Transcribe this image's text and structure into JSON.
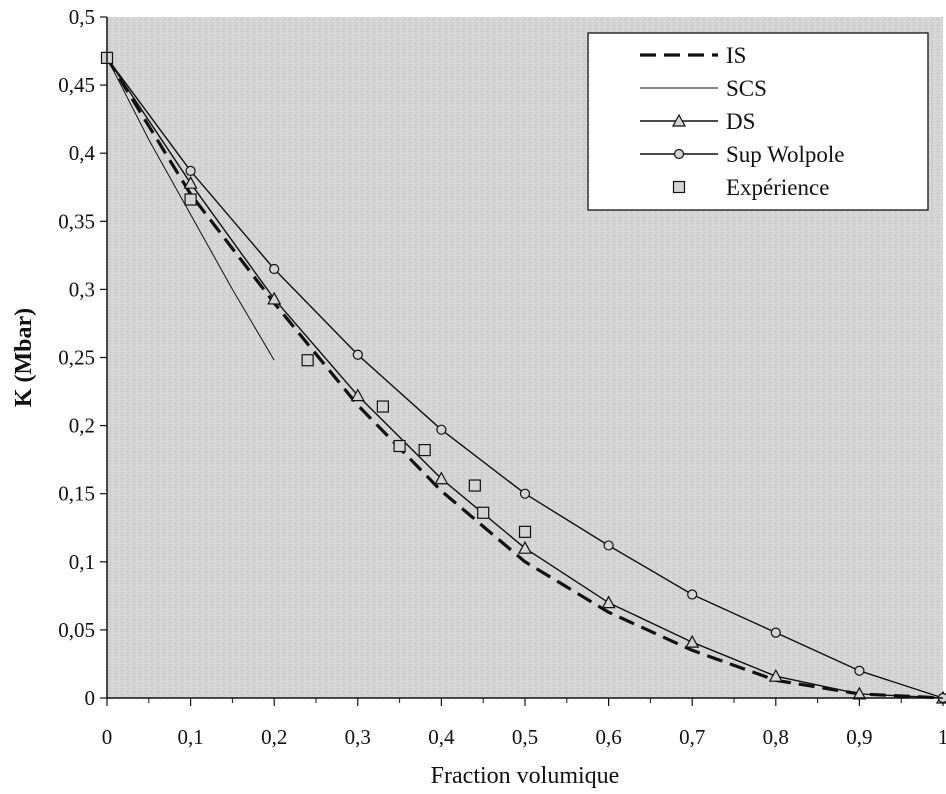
{
  "chart_data": {
    "type": "line",
    "title": "",
    "xlabel": "Fraction volumique",
    "ylabel": "K (Mbar)",
    "xlim": [
      0,
      1
    ],
    "ylim": [
      0,
      0.5
    ],
    "x_ticks": [
      0,
      0.1,
      0.2,
      0.3,
      0.4,
      0.5,
      0.6,
      0.7,
      0.8,
      0.9,
      1
    ],
    "x_tick_labels": [
      "0",
      "0,1",
      "0,2",
      "0,3",
      "0,4",
      "0,5",
      "0,6",
      "0,7",
      "0,8",
      "0,9",
      "1"
    ],
    "y_ticks": [
      0,
      0.05,
      0.1,
      0.15,
      0.2,
      0.25,
      0.3,
      0.35,
      0.4,
      0.45,
      0.5
    ],
    "y_tick_labels": [
      "0",
      "0,05",
      "0,1",
      "0,15",
      "0,2",
      "0,25",
      "0,3",
      "0,35",
      "0,4",
      "0,45",
      "0,5"
    ],
    "grid": false,
    "legend_position": "top-right",
    "series": [
      {
        "name": "IS",
        "style": "dashed",
        "marker": "none",
        "x": [
          0,
          0.1,
          0.2,
          0.3,
          0.4,
          0.5,
          0.6,
          0.7,
          0.8,
          0.9,
          1
        ],
        "y": [
          0.47,
          0.37,
          0.29,
          0.215,
          0.152,
          0.1,
          0.063,
          0.035,
          0.013,
          0.003,
          0
        ]
      },
      {
        "name": "SCS",
        "style": "solid-thin",
        "marker": "none",
        "x": [
          0,
          0.05,
          0.1,
          0.15,
          0.2
        ],
        "y": [
          0.47,
          0.41,
          0.355,
          0.3,
          0.248
        ]
      },
      {
        "name": "DS",
        "style": "solid",
        "marker": "triangle",
        "x": [
          0,
          0.1,
          0.2,
          0.3,
          0.4,
          0.5,
          0.6,
          0.7,
          0.8,
          0.9,
          1
        ],
        "y": [
          0.47,
          0.378,
          0.293,
          0.222,
          0.161,
          0.11,
          0.07,
          0.041,
          0.016,
          0.003,
          0
        ]
      },
      {
        "name": "Sup Wolpole",
        "style": "solid",
        "marker": "circle",
        "x": [
          0,
          0.1,
          0.2,
          0.3,
          0.4,
          0.5,
          0.6,
          0.7,
          0.8,
          0.9,
          1
        ],
        "y": [
          0.47,
          0.387,
          0.315,
          0.252,
          0.197,
          0.15,
          0.112,
          0.076,
          0.048,
          0.02,
          0
        ]
      },
      {
        "name": "Expérience",
        "style": "none",
        "marker": "square",
        "x": [
          0,
          0.1,
          0.24,
          0.33,
          0.35,
          0.38,
          0.44,
          0.45,
          0.5
        ],
        "y": [
          0.47,
          0.366,
          0.248,
          0.214,
          0.185,
          0.182,
          0.156,
          0.136,
          0.122
        ]
      }
    ]
  }
}
